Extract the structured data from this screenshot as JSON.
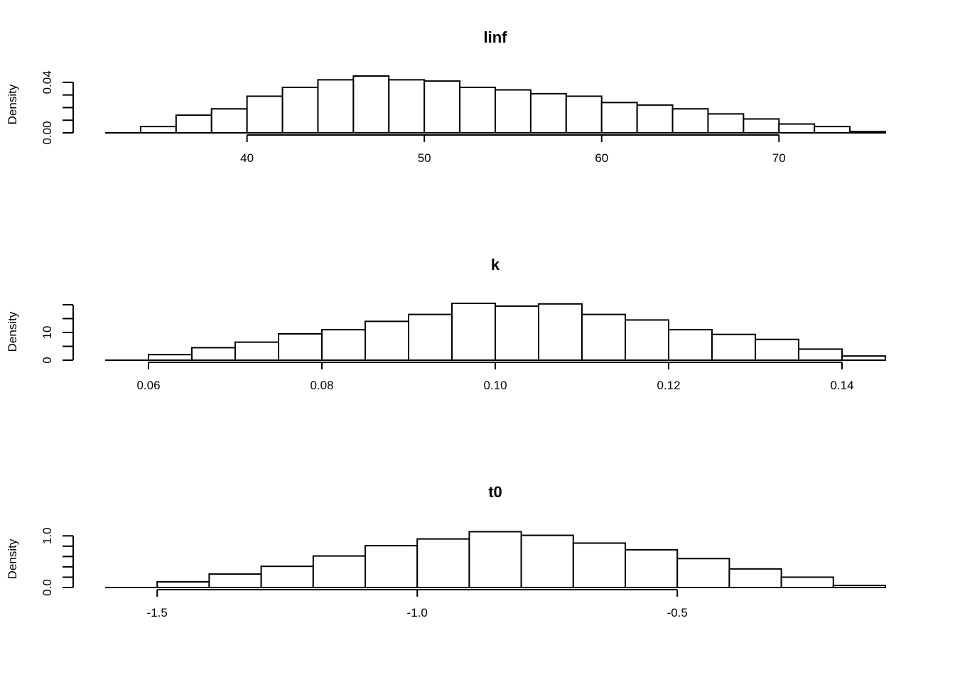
{
  "chart_data": [
    {
      "type": "bar",
      "title": "linf",
      "ylabel": "Density",
      "bin_edges": [
        34,
        36,
        38,
        40,
        42,
        44,
        46,
        48,
        50,
        52,
        54,
        56,
        58,
        60,
        62,
        64,
        66,
        68,
        70,
        72,
        74,
        76
      ],
      "values": [
        0.005,
        0.014,
        0.019,
        0.029,
        0.036,
        0.042,
        0.045,
        0.042,
        0.041,
        0.036,
        0.034,
        0.031,
        0.029,
        0.024,
        0.022,
        0.019,
        0.015,
        0.011,
        0.007,
        0.005,
        0.001
      ],
      "xlim": [
        32,
        76
      ],
      "ylim": [
        0,
        0.045
      ],
      "xticks": [
        40,
        50,
        60,
        70
      ],
      "xtick_labels": [
        "40",
        "50",
        "60",
        "70"
      ],
      "yticks": [
        0,
        0.01,
        0.02,
        0.03,
        0.04
      ],
      "ytick_labels": [
        {
          "value": 0,
          "label": "0.00"
        },
        {
          "value": 0.04,
          "label": "0.04"
        }
      ]
    },
    {
      "type": "bar",
      "title": "k",
      "ylabel": "Density",
      "bin_edges": [
        0.06,
        0.065,
        0.07,
        0.075,
        0.08,
        0.085,
        0.09,
        0.095,
        0.1,
        0.105,
        0.11,
        0.115,
        0.12,
        0.125,
        0.13,
        0.135,
        0.14,
        0.145
      ],
      "values": [
        2,
        4.5,
        6.5,
        9.5,
        11,
        14,
        16.5,
        20.5,
        19.5,
        20.3,
        16.5,
        14.5,
        11,
        9.3,
        7.5,
        4,
        1.5
      ],
      "xlim": [
        0.055,
        0.145
      ],
      "ylim": [
        0,
        20.5
      ],
      "xticks": [
        0.06,
        0.08,
        0.1,
        0.12,
        0.14
      ],
      "xtick_labels": [
        "0.06",
        "0.08",
        "0.10",
        "0.12",
        "0.14"
      ],
      "yticks": [
        0,
        5,
        10,
        15,
        20
      ],
      "ytick_labels": [
        {
          "value": 0,
          "label": "0"
        },
        {
          "value": 10,
          "label": "10"
        }
      ]
    },
    {
      "type": "bar",
      "title": "t0",
      "ylabel": "Density",
      "bin_edges": [
        -1.5,
        -1.4,
        -1.3,
        -1.2,
        -1.1,
        -1.0,
        -0.9,
        -0.8,
        -0.7,
        -0.6,
        -0.5,
        -0.4,
        -0.3,
        -0.2,
        -0.1
      ],
      "values": [
        0.11,
        0.26,
        0.41,
        0.61,
        0.81,
        0.94,
        1.08,
        1.01,
        0.86,
        0.73,
        0.56,
        0.36,
        0.2,
        0.04
      ],
      "xlim": [
        -1.6,
        -0.1
      ],
      "ylim": [
        0,
        1.1
      ],
      "xticks": [
        -1.5,
        -1.0,
        -0.5
      ],
      "xtick_labels": [
        "-1.5",
        "-1.0",
        "-0.5"
      ],
      "yticks": [
        0,
        0.2,
        0.4,
        0.6,
        0.8,
        1.0
      ],
      "ytick_labels": [
        {
          "value": 0,
          "label": "0.0"
        },
        {
          "value": 1.0,
          "label": "1.0"
        }
      ]
    }
  ]
}
